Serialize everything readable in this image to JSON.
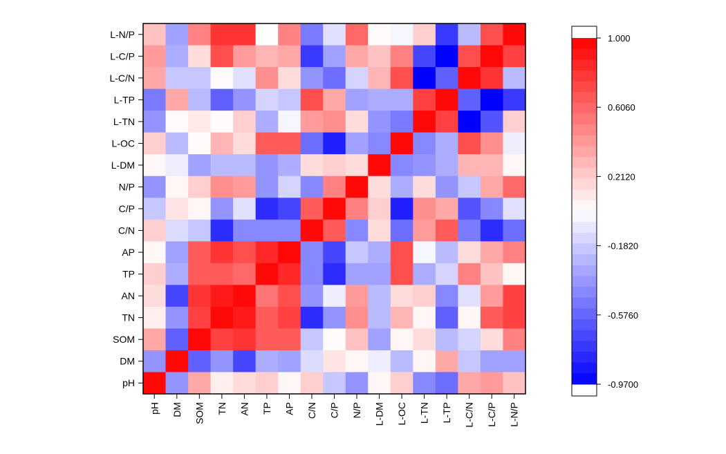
{
  "chart_data": {
    "type": "heatmap",
    "title": "",
    "xlabel": "",
    "ylabel": "",
    "x_categories": [
      "pH",
      "DM",
      "SOM",
      "TN",
      "AN",
      "TP",
      "AP",
      "C/N",
      "C/P",
      "N/P",
      "L-DM",
      "L-OC",
      "L-TN",
      "L-TP",
      "L-C/N",
      "L-C/P",
      "L-N/P"
    ],
    "y_categories_top_to_bottom": [
      "L-N/P",
      "L-C/P",
      "L-C/N",
      "L-TP",
      "L-TN",
      "L-OC",
      "L-DM",
      "N/P",
      "C/P",
      "C/N",
      "AP",
      "TP",
      "AN",
      "TN",
      "SOM",
      "DM",
      "pH"
    ],
    "values": [
      [
        0.25,
        -0.35,
        0.5,
        0.8,
        0.8,
        0.02,
        0.5,
        -0.5,
        -0.1,
        0.6,
        0.03,
        -0.02,
        0.2,
        -0.75,
        -0.25,
        0.7,
        0.97
      ],
      [
        0.4,
        -0.3,
        0.15,
        0.7,
        0.4,
        0.3,
        0.35,
        -0.75,
        -0.35,
        0.35,
        0.25,
        0.5,
        -0.7,
        -0.97,
        0.7,
        0.97,
        0.75
      ],
      [
        0.35,
        -0.2,
        -0.2,
        0.03,
        -0.1,
        0.45,
        0.15,
        -0.4,
        -0.55,
        -0.15,
        0.3,
        0.7,
        -0.97,
        -0.6,
        0.97,
        0.8,
        -0.25
      ],
      [
        -0.5,
        0.35,
        -0.25,
        -0.6,
        -0.4,
        -0.15,
        -0.2,
        0.7,
        0.35,
        -0.35,
        -0.3,
        -0.3,
        0.75,
        0.97,
        -0.6,
        -0.97,
        -0.75
      ],
      [
        -0.4,
        0.03,
        0.1,
        0.03,
        0.2,
        -0.3,
        -0.02,
        0.4,
        0.45,
        0.15,
        -0.4,
        -0.5,
        0.97,
        0.75,
        -0.97,
        -0.65,
        0.2
      ],
      [
        0.2,
        -0.25,
        0.03,
        0.3,
        0.15,
        0.65,
        0.65,
        -0.55,
        -0.85,
        -0.35,
        -0.45,
        0.97,
        -0.45,
        -0.3,
        0.7,
        0.45,
        -0.05
      ],
      [
        0.05,
        -0.05,
        -0.35,
        -0.25,
        -0.25,
        -0.4,
        -0.3,
        0.15,
        0.2,
        0.15,
        0.97,
        -0.45,
        -0.4,
        -0.3,
        0.3,
        0.3,
        0.05
      ],
      [
        -0.4,
        0.05,
        0.2,
        0.45,
        0.4,
        -0.4,
        -0.15,
        -0.45,
        0.5,
        0.97,
        0.15,
        -0.3,
        0.15,
        -0.4,
        -0.2,
        0.35,
        0.6
      ],
      [
        -0.2,
        0.12,
        0.05,
        -0.4,
        -0.1,
        -0.8,
        -0.7,
        0.65,
        0.97,
        0.5,
        0.2,
        -0.85,
        0.45,
        0.35,
        -0.65,
        -0.45,
        -0.1
      ],
      [
        0.2,
        -0.12,
        -0.2,
        -0.8,
        -0.45,
        -0.45,
        -0.45,
        0.97,
        0.65,
        -0.45,
        0.15,
        -0.55,
        0.4,
        0.65,
        -0.5,
        -0.8,
        -0.55
      ],
      [
        0.05,
        -0.35,
        0.65,
        0.8,
        0.7,
        0.85,
        0.97,
        -0.45,
        -0.7,
        -0.2,
        -0.3,
        0.7,
        -0.02,
        -0.25,
        0.15,
        0.35,
        0.5
      ],
      [
        0.2,
        -0.3,
        0.65,
        0.65,
        0.6,
        0.97,
        0.85,
        -0.45,
        -0.8,
        -0.35,
        -0.35,
        0.7,
        -0.3,
        -0.15,
        0.5,
        0.25,
        0.05
      ],
      [
        0.15,
        -0.7,
        0.8,
        0.9,
        0.97,
        0.55,
        0.7,
        -0.4,
        -0.05,
        0.4,
        -0.25,
        0.15,
        0.2,
        -0.45,
        -0.1,
        0.4,
        0.75
      ],
      [
        0.08,
        -0.4,
        0.75,
        0.97,
        0.9,
        0.65,
        0.75,
        -0.8,
        -0.4,
        0.45,
        -0.25,
        0.3,
        0.05,
        -0.6,
        0.05,
        0.65,
        0.75
      ],
      [
        0.35,
        -0.6,
        0.97,
        0.75,
        0.8,
        0.65,
        0.65,
        -0.2,
        0.03,
        0.25,
        -0.35,
        0.05,
        0.15,
        -0.25,
        -0.15,
        0.15,
        0.5
      ],
      [
        -0.4,
        0.97,
        -0.6,
        -0.4,
        -0.7,
        -0.3,
        -0.35,
        -0.12,
        0.12,
        0.05,
        -0.05,
        -0.25,
        0.05,
        0.35,
        -0.2,
        -0.35,
        -0.35
      ],
      [
        0.97,
        -0.4,
        0.35,
        0.08,
        0.15,
        0.2,
        0.05,
        0.2,
        -0.2,
        -0.4,
        0.05,
        0.2,
        -0.45,
        -0.55,
        0.35,
        0.4,
        0.25
      ]
    ],
    "colorbar": {
      "min": -0.97,
      "max": 1.0,
      "tick_labels": [
        "1.000",
        "0.6060",
        "0.2120",
        "-0.1820",
        "-0.5760",
        "-0.9700"
      ],
      "tick_values": [
        1.0,
        0.606,
        0.212,
        -0.182,
        -0.576,
        -0.97
      ],
      "colors": {
        "low": "#0000ff",
        "mid": "#ffffff",
        "high": "#ff0000"
      }
    },
    "grid": false,
    "legend": "colorbar-right"
  }
}
